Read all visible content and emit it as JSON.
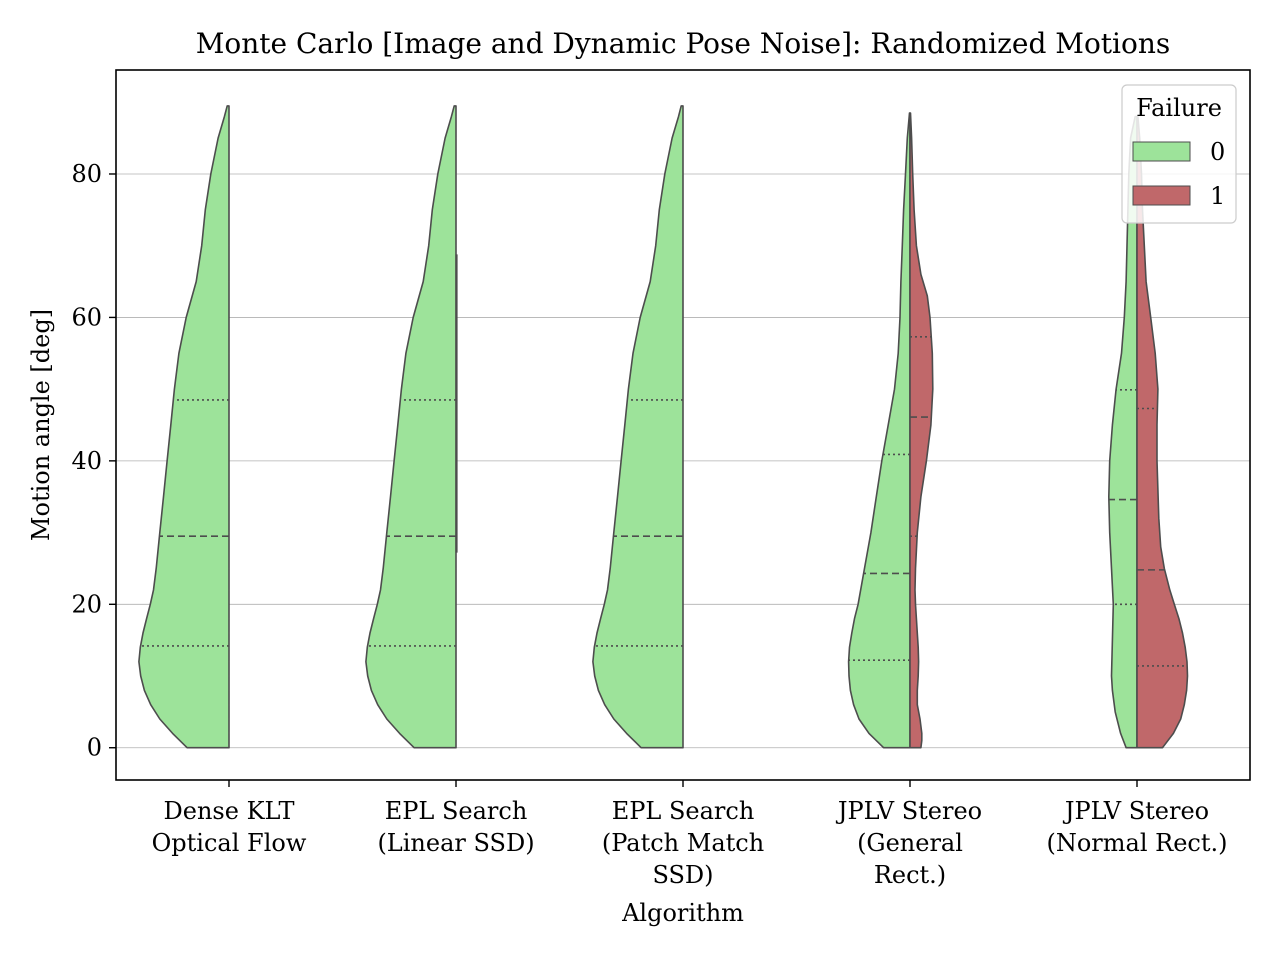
{
  "chart_data": {
    "type": "violin",
    "title": "Monte Carlo [Image and Dynamic Pose Noise]: Randomized Motions",
    "xlabel": "Algorithm",
    "ylabel": "Motion angle [deg]",
    "ylim": [
      -4.5,
      94.5
    ],
    "yticks": [
      0,
      20,
      40,
      60,
      80
    ],
    "grid": "y",
    "legend": {
      "title": "Failure",
      "placement": "top-right",
      "entries": [
        {
          "label": "0",
          "color": "#9de39a"
        },
        {
          "label": "1",
          "color": "#c0686a"
        }
      ]
    },
    "colors": {
      "failure_0": "#9de39a",
      "failure_1": "#c0686a",
      "edge": "#4d4d4d"
    },
    "categories": [
      {
        "label_lines": [
          "Dense KLT",
          "Optical Flow"
        ]
      },
      {
        "label_lines": [
          "EPL Search",
          "(Linear SSD)"
        ]
      },
      {
        "label_lines": [
          "EPL Search",
          "(Patch Match",
          "SSD)"
        ]
      },
      {
        "label_lines": [
          "JPLV Stereo",
          "(General",
          "Rect.)"
        ]
      },
      {
        "label_lines": [
          "JPLV Stereo",
          "(Normal Rect.)"
        ]
      }
    ],
    "series": [
      {
        "name": "0",
        "violins": [
          {
            "min": 0,
            "max": 89.5,
            "q1": 14.2,
            "median": 29.5,
            "q3": 48.5,
            "profile": [
              [
                0,
                0.46
              ],
              [
                2,
                0.62
              ],
              [
                4,
                0.76
              ],
              [
                6,
                0.86
              ],
              [
                8,
                0.93
              ],
              [
                10,
                0.97
              ],
              [
                12,
                0.99
              ],
              [
                14,
                0.975
              ],
              [
                16,
                0.945
              ],
              [
                18,
                0.905
              ],
              [
                20,
                0.865
              ],
              [
                22,
                0.83
              ],
              [
                25,
                0.8
              ],
              [
                30,
                0.76
              ],
              [
                35,
                0.72
              ],
              [
                40,
                0.68
              ],
              [
                45,
                0.64
              ],
              [
                50,
                0.6
              ],
              [
                55,
                0.55
              ],
              [
                60,
                0.47
              ],
              [
                65,
                0.36
              ],
              [
                70,
                0.3
              ],
              [
                75,
                0.26
              ],
              [
                80,
                0.2
              ],
              [
                85,
                0.12
              ],
              [
                88,
                0.05
              ],
              [
                89.5,
                0.02
              ]
            ]
          },
          {
            "min": 0,
            "max": 89.5,
            "q1": 14.2,
            "median": 29.5,
            "q3": 48.5,
            "profile": [
              [
                0,
                0.46
              ],
              [
                2,
                0.62
              ],
              [
                4,
                0.76
              ],
              [
                6,
                0.86
              ],
              [
                8,
                0.93
              ],
              [
                10,
                0.97
              ],
              [
                12,
                0.99
              ],
              [
                14,
                0.975
              ],
              [
                16,
                0.945
              ],
              [
                18,
                0.905
              ],
              [
                20,
                0.865
              ],
              [
                22,
                0.83
              ],
              [
                25,
                0.8
              ],
              [
                30,
                0.76
              ],
              [
                35,
                0.72
              ],
              [
                40,
                0.68
              ],
              [
                45,
                0.64
              ],
              [
                50,
                0.6
              ],
              [
                55,
                0.55
              ],
              [
                60,
                0.47
              ],
              [
                65,
                0.36
              ],
              [
                70,
                0.3
              ],
              [
                75,
                0.26
              ],
              [
                80,
                0.2
              ],
              [
                85,
                0.12
              ],
              [
                88,
                0.05
              ],
              [
                89.5,
                0.02
              ]
            ]
          },
          {
            "min": 0,
            "max": 89.5,
            "q1": 14.2,
            "median": 29.5,
            "q3": 48.5,
            "profile": [
              [
                0,
                0.46
              ],
              [
                2,
                0.62
              ],
              [
                4,
                0.76
              ],
              [
                6,
                0.86
              ],
              [
                8,
                0.93
              ],
              [
                10,
                0.97
              ],
              [
                12,
                0.99
              ],
              [
                14,
                0.975
              ],
              [
                16,
                0.945
              ],
              [
                18,
                0.905
              ],
              [
                20,
                0.865
              ],
              [
                22,
                0.83
              ],
              [
                25,
                0.8
              ],
              [
                30,
                0.76
              ],
              [
                35,
                0.72
              ],
              [
                40,
                0.68
              ],
              [
                45,
                0.64
              ],
              [
                50,
                0.6
              ],
              [
                55,
                0.55
              ],
              [
                60,
                0.47
              ],
              [
                65,
                0.36
              ],
              [
                70,
                0.3
              ],
              [
                75,
                0.26
              ],
              [
                80,
                0.2
              ],
              [
                85,
                0.12
              ],
              [
                88,
                0.05
              ],
              [
                89.5,
                0.02
              ]
            ]
          },
          {
            "min": 0,
            "max": 88.5,
            "q1": 12.2,
            "median": 24.3,
            "q3": 40.9,
            "profile": [
              [
                0,
                0.29
              ],
              [
                2,
                0.45
              ],
              [
                4,
                0.56
              ],
              [
                6,
                0.62
              ],
              [
                8,
                0.655
              ],
              [
                10,
                0.67
              ],
              [
                12,
                0.675
              ],
              [
                14,
                0.665
              ],
              [
                16,
                0.64
              ],
              [
                18,
                0.61
              ],
              [
                20,
                0.57
              ],
              [
                25,
                0.5
              ],
              [
                30,
                0.43
              ],
              [
                35,
                0.37
              ],
              [
                40,
                0.31
              ],
              [
                45,
                0.24
              ],
              [
                50,
                0.17
              ],
              [
                55,
                0.13
              ],
              [
                60,
                0.11
              ],
              [
                65,
                0.1
              ],
              [
                70,
                0.085
              ],
              [
                75,
                0.07
              ],
              [
                80,
                0.05
              ],
              [
                85,
                0.03
              ],
              [
                88.5,
                0.005
              ]
            ]
          },
          {
            "min": 0,
            "max": 88,
            "q1": 20,
            "median": 34.6,
            "q3": 49.9,
            "profile": [
              [
                0,
                0.12
              ],
              [
                2,
                0.18
              ],
              [
                5,
                0.24
              ],
              [
                8,
                0.27
              ],
              [
                10,
                0.28
              ],
              [
                15,
                0.27
              ],
              [
                20,
                0.26
              ],
              [
                25,
                0.28
              ],
              [
                30,
                0.3
              ],
              [
                35,
                0.31
              ],
              [
                40,
                0.3
              ],
              [
                45,
                0.27
              ],
              [
                50,
                0.23
              ],
              [
                55,
                0.17
              ],
              [
                60,
                0.14
              ],
              [
                65,
                0.12
              ],
              [
                70,
                0.11
              ],
              [
                75,
                0.1
              ],
              [
                80,
                0.09
              ],
              [
                85,
                0.07
              ],
              [
                88,
                0.02
              ]
            ]
          }
        ]
      },
      {
        "name": "1",
        "violins": [
          null,
          {
            "line_only": true,
            "min": 27.2,
            "max": 68.8
          },
          null,
          {
            "min": 0,
            "max": 88.5,
            "q1": 29.5,
            "median": 46.1,
            "q3": 57.3,
            "profile": [
              [
                0,
                0.12
              ],
              [
                1,
                0.13
              ],
              [
                2,
                0.13
              ],
              [
                3,
                0.12
              ],
              [
                4,
                0.11
              ],
              [
                6,
                0.08
              ],
              [
                8,
                0.08
              ],
              [
                10,
                0.09
              ],
              [
                12,
                0.095
              ],
              [
                14,
                0.09
              ],
              [
                16,
                0.08
              ],
              [
                18,
                0.07
              ],
              [
                20,
                0.06
              ],
              [
                22,
                0.055
              ],
              [
                25,
                0.06
              ],
              [
                30,
                0.08
              ],
              [
                35,
                0.12
              ],
              [
                40,
                0.18
              ],
              [
                45,
                0.23
              ],
              [
                50,
                0.25
              ],
              [
                55,
                0.245
              ],
              [
                60,
                0.22
              ],
              [
                63,
                0.19
              ],
              [
                66,
                0.12
              ],
              [
                70,
                0.07
              ],
              [
                75,
                0.045
              ],
              [
                80,
                0.03
              ],
              [
                85,
                0.018
              ],
              [
                88.5,
                0.005
              ]
            ]
          },
          {
            "min": 0,
            "max": 88,
            "q1": 11.4,
            "median": 24.8,
            "q3": 47.3,
            "profile": [
              [
                0,
                0.28
              ],
              [
                2,
                0.4
              ],
              [
                4,
                0.48
              ],
              [
                6,
                0.52
              ],
              [
                8,
                0.545
              ],
              [
                10,
                0.555
              ],
              [
                12,
                0.55
              ],
              [
                14,
                0.53
              ],
              [
                16,
                0.5
              ],
              [
                18,
                0.46
              ],
              [
                20,
                0.41
              ],
              [
                22,
                0.36
              ],
              [
                25,
                0.3
              ],
              [
                28,
                0.26
              ],
              [
                32,
                0.24
              ],
              [
                36,
                0.23
              ],
              [
                40,
                0.22
              ],
              [
                45,
                0.22
              ],
              [
                50,
                0.23
              ],
              [
                55,
                0.2
              ],
              [
                60,
                0.15
              ],
              [
                65,
                0.1
              ],
              [
                70,
                0.08
              ],
              [
                75,
                0.06
              ],
              [
                80,
                0.05
              ],
              [
                85,
                0.03
              ],
              [
                88,
                0.01
              ]
            ]
          }
        ]
      }
    ]
  }
}
